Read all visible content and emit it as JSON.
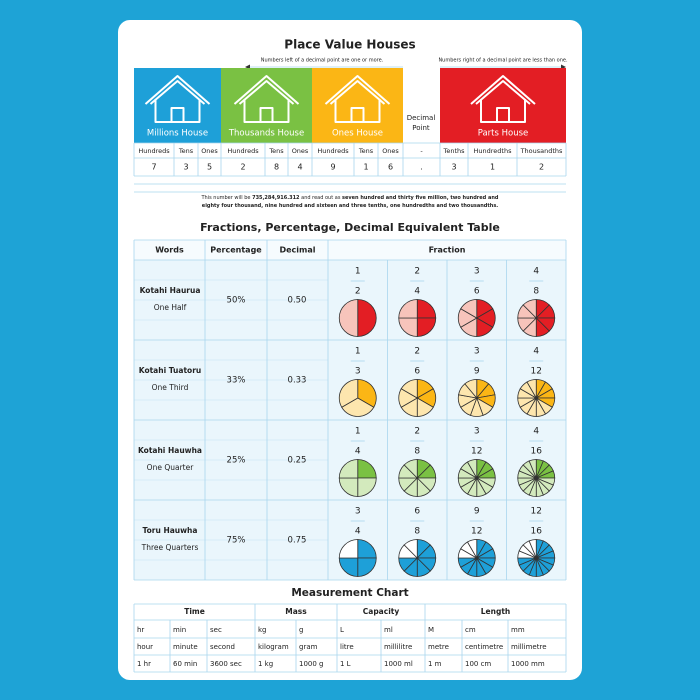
{
  "place_value": {
    "title": "Place Value Houses",
    "left_note": "Numbers left of a decimal point are one or more.",
    "right_note": "Numbers right of a decimal point are less than one.",
    "houses": [
      {
        "label": "Millions House",
        "color": "#1ea0d8"
      },
      {
        "label": "Thousands House",
        "color": "#7ac143"
      },
      {
        "label": "Ones House",
        "color": "#fbb615"
      },
      {
        "label": "Parts House",
        "color": "#e31e24"
      }
    ],
    "decimal_point_label": "Decimal Point",
    "columns": [
      "Hundreds",
      "Tens",
      "Ones",
      "Hundreds",
      "Tens",
      "Ones",
      "Hundreds",
      "Tens",
      "Ones",
      "-",
      "Tenths",
      "Hundredths",
      "Thousandths"
    ],
    "digits": [
      "7",
      "3",
      "5",
      "2",
      "8",
      "4",
      "9",
      "1",
      "6",
      ".",
      "3",
      "1",
      "2"
    ],
    "note": [
      [
        "This number will be ",
        "735,284,916.312",
        " and read out as ",
        "seven hundred and thirty five million, two hundred and"
      ],
      [
        "eighty four thousand, nine hundred and sixteen and three tenths, one hundredths and two thousandths."
      ]
    ]
  },
  "fractions": {
    "title": "Fractions, Percentage, Decimal Equivalent Table",
    "headers": [
      "Words",
      "Percentage",
      "Decimal",
      "Fraction"
    ],
    "rows": [
      {
        "maori": "Kotahi Haurua",
        "english": "One Half",
        "percentage": "50%",
        "decimal": "0.50",
        "color": "#e31e24",
        "pale": "#f7c4bb",
        "fractions": [
          {
            "numerator": 1,
            "denominator": 2
          },
          {
            "numerator": 2,
            "denominator": 4
          },
          {
            "numerator": 3,
            "denominator": 6
          },
          {
            "numerator": 4,
            "denominator": 8
          }
        ]
      },
      {
        "maori": "Kotahi Tuatoru",
        "english": "One Third",
        "percentage": "33%",
        "decimal": "0.33",
        "color": "#fbb615",
        "pale": "#fde6ae",
        "fractions": [
          {
            "numerator": 1,
            "denominator": 3
          },
          {
            "numerator": 2,
            "denominator": 6
          },
          {
            "numerator": 3,
            "denominator": 9
          },
          {
            "numerator": 4,
            "denominator": 12
          }
        ]
      },
      {
        "maori": "Kotahi Hauwha",
        "english": "One Quarter",
        "percentage": "25%",
        "decimal": "0.25",
        "color": "#7ac143",
        "pale": "#d3eabd",
        "fractions": [
          {
            "numerator": 1,
            "denominator": 4
          },
          {
            "numerator": 2,
            "denominator": 8
          },
          {
            "numerator": 3,
            "denominator": 12
          },
          {
            "numerator": 4,
            "denominator": 16
          }
        ]
      },
      {
        "maori": "Toru Hauwha",
        "english": "Three Quarters",
        "percentage": "75%",
        "decimal": "0.75",
        "color": "#1ea0d8",
        "pale": "#ffffff",
        "fractions": [
          {
            "numerator": 3,
            "denominator": 4
          },
          {
            "numerator": 6,
            "denominator": 8
          },
          {
            "numerator": 9,
            "denominator": 12
          },
          {
            "numerator": 12,
            "denominator": 16
          }
        ]
      }
    ]
  },
  "measurement": {
    "title": "Measurement Chart",
    "groups": [
      {
        "name": "Time",
        "units": [
          {
            "symbol": "hr",
            "name": "hour",
            "value": "1 hr"
          },
          {
            "symbol": "min",
            "name": "minute",
            "value": "60 min"
          },
          {
            "symbol": "sec",
            "name": "second",
            "value": "3600 sec"
          }
        ]
      },
      {
        "name": "Mass",
        "units": [
          {
            "symbol": "kg",
            "name": "kilogram",
            "value": "1 kg"
          },
          {
            "symbol": "g",
            "name": "gram",
            "value": "1000 g"
          }
        ]
      },
      {
        "name": "Capacity",
        "units": [
          {
            "symbol": "L",
            "name": "litre",
            "value": "1 L"
          },
          {
            "symbol": "ml",
            "name": "millilitre",
            "value": "1000 ml"
          }
        ]
      },
      {
        "name": "Length",
        "units": [
          {
            "symbol": "M",
            "name": "metre",
            "value": "1 m"
          },
          {
            "symbol": "cm",
            "name": "centimetre",
            "value": "100 cm"
          },
          {
            "symbol": "mm",
            "name": "millimetre",
            "value": "1000 mm"
          }
        ]
      }
    ]
  }
}
